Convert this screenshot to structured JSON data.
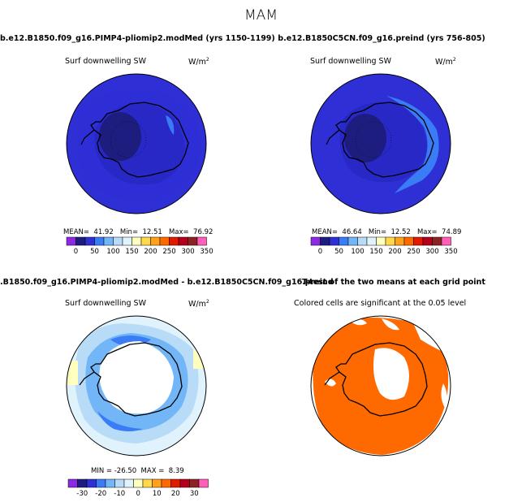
{
  "figure_title": "MAM",
  "panels": [
    {
      "title": "b.e12.B1850.f09_g16.PIMP4-pliomip2.modMed (yrs 1150-1199)",
      "variable": "Surf downwelling SW",
      "units": "W/m",
      "units_sup": "2",
      "stats": {
        "mean_label": "MEAN=",
        "mean": "41.92",
        "min_label": "Min=",
        "min": "12.51",
        "max_label": "Max=",
        "max": "76.92"
      },
      "colorbar_labels": [
        "0",
        "50",
        "100",
        "150",
        "200",
        "250",
        "300",
        "350"
      ]
    },
    {
      "title": "b.e12.B1850C5CN.f09_g16.preind (yrs 756-805)",
      "variable": "Surf downwelling SW",
      "units": "W/m",
      "units_sup": "2",
      "stats": {
        "mean_label": "MEAN=",
        "mean": "46.64",
        "min_label": "Min=",
        "min": "12.52",
        "max_label": "Max=",
        "max": "74.89"
      },
      "colorbar_labels": [
        "0",
        "50",
        "100",
        "150",
        "200",
        "250",
        "300",
        "350"
      ]
    },
    {
      "title": ".B1850.f09_g16.PIMP4-pliomip2.modMed - b.e12.B1850C5CN.f09_g16.preind",
      "variable": "Surf downwelling SW",
      "units": "W/m",
      "units_sup": "2",
      "stats": {
        "min_label": "MIN =",
        "min": "-26.50",
        "max_label": "MAX =",
        "max": "8.39"
      },
      "colorbar_labels": [
        "-30",
        "-20",
        "-10",
        "0",
        "10",
        "20",
        "30"
      ]
    },
    {
      "title": "T-test of the two means at each grid point",
      "caption": "Colored cells are significant at the 0.05 level"
    }
  ],
  "chart_data": [
    {
      "type": "heatmap",
      "projection": "south-polar-stereographic",
      "variable": "Surf downwelling SW",
      "units": "W/m2",
      "season": "MAM",
      "mean": 41.92,
      "min": 12.51,
      "max": 76.92,
      "levels": [
        0,
        25,
        50,
        75,
        100,
        125,
        150,
        175,
        200,
        225,
        250,
        275,
        300,
        325,
        350
      ]
    },
    {
      "type": "heatmap",
      "projection": "south-polar-stereographic",
      "variable": "Surf downwelling SW",
      "units": "W/m2",
      "season": "MAM",
      "mean": 46.64,
      "min": 12.52,
      "max": 74.89,
      "levels": [
        0,
        25,
        50,
        75,
        100,
        125,
        150,
        175,
        200,
        225,
        250,
        275,
        300,
        325,
        350
      ]
    },
    {
      "type": "heatmap",
      "projection": "south-polar-stereographic",
      "variable": "Surf downwelling SW difference",
      "units": "W/m2",
      "min": -26.5,
      "max": 8.39,
      "levels": [
        -35,
        -30,
        -25,
        -20,
        -15,
        -10,
        -5,
        0,
        5,
        10,
        15,
        20,
        25,
        30,
        35
      ]
    },
    {
      "type": "heatmap",
      "projection": "south-polar-stereographic",
      "variable": "t-test significance",
      "significance_level": 0.05
    }
  ],
  "colors": {
    "seq": [
      "#8c2be2",
      "#1d1d80",
      "#2f2fd6",
      "#3a7cf5",
      "#73b6f8",
      "#b8dcf8",
      "#e0f2fb",
      "#ffffc0",
      "#ffd94a",
      "#ffa21a",
      "#ff6a00",
      "#e21a00",
      "#b4001c",
      "#8c2222",
      "#ff5fb8"
    ],
    "field_dark": "#2f2fd6",
    "field_navy": "#1d1d80",
    "field_light": "#b8dcf8",
    "field_sky": "#73b6f8",
    "field_pale": "#e0f2fb",
    "field_yellow": "#ffffc0",
    "sig_orange": "#ff6a00"
  }
}
